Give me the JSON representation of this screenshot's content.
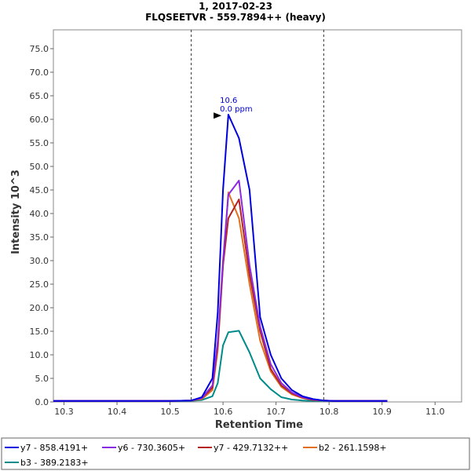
{
  "chart_data": {
    "type": "line",
    "title": "1, 2017-02-23",
    "subtitle": "FLQSEETVR - 559.7894++ (heavy)",
    "xlabel": "Retention Time",
    "ylabel": "Intensity 10^3",
    "xlim": [
      10.28,
      11.05
    ],
    "ylim": [
      0,
      79
    ],
    "xticks": [
      "10.3",
      "10.4",
      "10.5",
      "10.6",
      "10.7",
      "10.8",
      "10.9",
      "11.0"
    ],
    "yticks": [
      "0.0",
      "5.0",
      "10.0",
      "15.0",
      "20.0",
      "25.0",
      "30.0",
      "35.0",
      "40.0",
      "45.0",
      "50.0",
      "55.0",
      "60.0",
      "65.0",
      "70.0",
      "75.0"
    ],
    "grid": false,
    "legend_position": "bottom",
    "integration_bounds": [
      10.54,
      10.79
    ],
    "annotation": {
      "x": 10.6,
      "y": 60.8,
      "line1": "10.6",
      "line2": "0.0 ppm"
    },
    "series": [
      {
        "name": "y7 - 858.4191+",
        "color": "#0000dd",
        "x": [
          10.28,
          10.35,
          10.4,
          10.45,
          10.5,
          10.54,
          10.56,
          10.58,
          10.59,
          10.6,
          10.61,
          10.63,
          10.65,
          10.67,
          10.69,
          10.71,
          10.73,
          10.75,
          10.77,
          10.79,
          10.81,
          10.83,
          10.85,
          10.88,
          10.91
        ],
        "y": [
          0.2,
          0.2,
          0.2,
          0.2,
          0.2,
          0.3,
          1.0,
          5.0,
          19.0,
          45.0,
          61.0,
          56.0,
          45.0,
          18.0,
          10.0,
          5.0,
          2.5,
          1.2,
          0.6,
          0.3,
          0.2,
          0.2,
          0.2,
          0.2,
          0.2
        ]
      },
      {
        "name": "y6 - 730.3605+",
        "color": "#8a2be2",
        "x": [
          10.28,
          10.35,
          10.4,
          10.45,
          10.5,
          10.54,
          10.56,
          10.58,
          10.59,
          10.6,
          10.61,
          10.63,
          10.65,
          10.67,
          10.69,
          10.71,
          10.73,
          10.75,
          10.77,
          10.79,
          10.81,
          10.83,
          10.85,
          10.88,
          10.91
        ],
        "y": [
          0.2,
          0.2,
          0.2,
          0.2,
          0.2,
          0.3,
          0.8,
          3.5,
          13.0,
          30.0,
          44.0,
          47.0,
          29.0,
          16.0,
          8.0,
          4.0,
          2.0,
          1.0,
          0.5,
          0.3,
          0.2,
          0.2,
          0.2,
          0.2,
          0.2
        ]
      },
      {
        "name": "y7 - 429.7132++",
        "color": "#b22222",
        "x": [
          10.28,
          10.35,
          10.4,
          10.45,
          10.5,
          10.54,
          10.56,
          10.58,
          10.59,
          10.6,
          10.61,
          10.63,
          10.65,
          10.67,
          10.69,
          10.71,
          10.73,
          10.75,
          10.77,
          10.79,
          10.81,
          10.83,
          10.85,
          10.88,
          10.91
        ],
        "y": [
          0.2,
          0.2,
          0.2,
          0.2,
          0.2,
          0.3,
          0.8,
          3.0,
          12.0,
          29.0,
          39.0,
          43.0,
          27.0,
          15.0,
          7.0,
          3.5,
          1.8,
          0.9,
          0.4,
          0.3,
          0.2,
          0.2,
          0.2,
          0.2,
          0.2
        ]
      },
      {
        "name": "b2 - 261.1598+",
        "color": "#e07020",
        "x": [
          10.28,
          10.35,
          10.4,
          10.45,
          10.5,
          10.54,
          10.56,
          10.58,
          10.59,
          10.6,
          10.61,
          10.63,
          10.65,
          10.67,
          10.69,
          10.71,
          10.73,
          10.75,
          10.77,
          10.79,
          10.81,
          10.83,
          10.85,
          10.88,
          10.91
        ],
        "y": [
          0.2,
          0.2,
          0.2,
          0.2,
          0.2,
          0.3,
          0.6,
          2.5,
          11.0,
          29.0,
          44.5,
          39.0,
          25.0,
          13.0,
          6.5,
          3.2,
          1.6,
          0.8,
          0.4,
          0.3,
          0.2,
          0.2,
          0.2,
          0.2,
          0.2
        ]
      },
      {
        "name": "b3 - 389.2183+",
        "color": "#008b8b",
        "x": [
          10.28,
          10.35,
          10.4,
          10.45,
          10.5,
          10.54,
          10.56,
          10.58,
          10.59,
          10.6,
          10.61,
          10.63,
          10.65,
          10.67,
          10.69,
          10.71,
          10.73,
          10.75,
          10.77,
          10.79,
          10.81,
          10.83,
          10.85,
          10.88,
          10.91
        ],
        "y": [
          0.2,
          0.2,
          0.2,
          0.2,
          0.2,
          0.2,
          0.4,
          1.2,
          4.0,
          12.0,
          14.8,
          15.1,
          10.5,
          5.0,
          2.7,
          1.0,
          0.5,
          0.3,
          0.2,
          0.2,
          0.2,
          0.2,
          0.2,
          0.2,
          0.2
        ]
      }
    ]
  }
}
